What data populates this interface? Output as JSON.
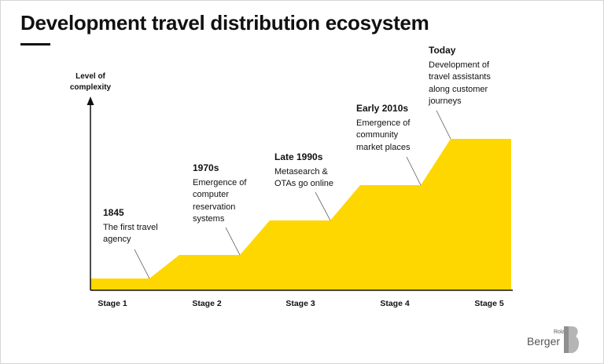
{
  "title": "Development travel distribution ecosystem",
  "axis": {
    "y_label": "Level of complexity"
  },
  "stages": [
    "Stage 1",
    "Stage 2",
    "Stage 3",
    "Stage 4",
    "Stage 5"
  ],
  "milestones": [
    {
      "year": "1845",
      "desc": "The first  travel\nagency"
    },
    {
      "year": "1970s",
      "desc": "Emergence of\ncomputer\nreservation\nsystems"
    },
    {
      "year": "Late 1990s",
      "desc": "Metasearch &\nOTAs go online"
    },
    {
      "year": "Early 2010s",
      "desc": "Emergence of\ncommunity\nmarket places"
    },
    {
      "year": "Today",
      "desc": "Development of\ntravel assistants\nalong customer\njourneys"
    }
  ],
  "brand": {
    "small": "Roland",
    "big": "Berger"
  },
  "colors": {
    "fill": "#FFD700",
    "text": "#111111",
    "leader": "#555555",
    "logo": "#9a9a9a"
  }
}
